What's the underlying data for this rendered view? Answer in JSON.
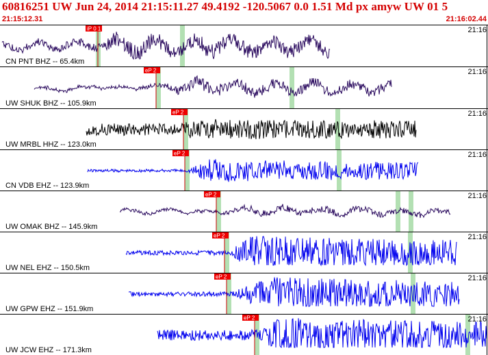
{
  "header": {
    "title": "60816251 UW Jun 24, 2014 21:15:11.27    49.4192 -120.5067  0.0 1.51 Md px amyw UW 01   5",
    "start_time": "21:15:12.31",
    "end_time": "21:16:02.44"
  },
  "colors": {
    "header_text": "#d40000",
    "pick_box": "#ee0000",
    "pick_line": "#cc0000",
    "dark_trace": "#2a0a5e",
    "black_trace": "#000000",
    "blue_trace": "#0000ee",
    "window_band": "#b3e0b3"
  },
  "traces": [
    {
      "label": "CN PNT BHZ -- 65.4km",
      "time": "21:16",
      "pick": "iP 0 1",
      "color": "dark"
    },
    {
      "label": "UW SHUK BHZ -- 105.9km",
      "time": "21:16",
      "pick": "eP 2",
      "color": "dark"
    },
    {
      "label": "UW MRBL HHZ -- 123.0km",
      "time": "21:16",
      "pick": "eP 2",
      "color": "black"
    },
    {
      "label": "CN VDB EHZ -- 123.9km",
      "time": "21:16",
      "pick": "eP 2",
      "color": "blue"
    },
    {
      "label": "UW OMAK BHZ -- 145.9km",
      "time": "21:16",
      "pick": "eP 2",
      "color": "dark"
    },
    {
      "label": "UW NEL EHZ -- 150.5km",
      "time": "21:16",
      "pick": "eP 2",
      "color": "blue"
    },
    {
      "label": "UW GPW EHZ -- 151.9km",
      "time": "21:16",
      "pick": "eP 2",
      "color": "blue"
    },
    {
      "label": "UW JCW EHZ -- 171.3km",
      "time": "21:16",
      "pick": "eP 2",
      "color": "blue"
    }
  ]
}
